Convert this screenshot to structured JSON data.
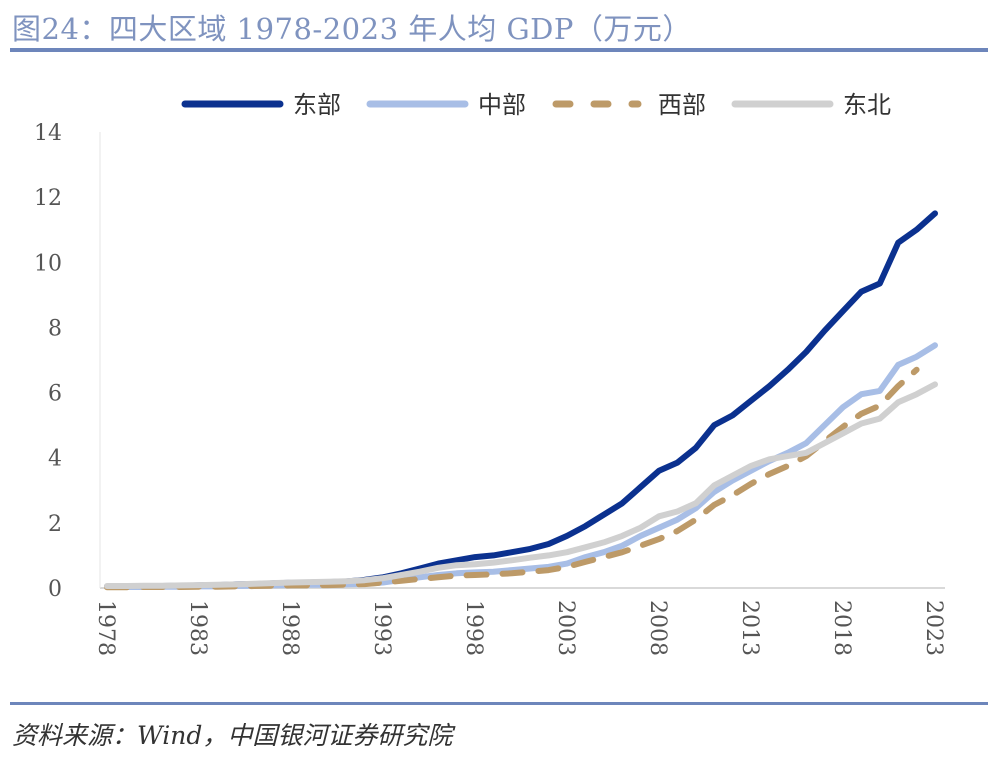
{
  "title": "图24：四大区域 1978-2023 年人均 GDP（万元）",
  "source": "资料来源：Wind，中国银河证券研究院",
  "chart_data": {
    "type": "line",
    "title": "四大区域 1978-2023 年人均 GDP（万元）",
    "xlabel": "",
    "ylabel": "",
    "ylim": [
      0,
      14
    ],
    "yticks": [
      "0",
      "2",
      "4",
      "6",
      "8",
      "10",
      "12",
      "14"
    ],
    "xticks": [
      "1978",
      "1983",
      "1988",
      "1993",
      "1998",
      "2003",
      "2008",
      "2013",
      "2018",
      "2023"
    ],
    "legend_position": "top",
    "x": [
      1978,
      1979,
      1980,
      1981,
      1982,
      1983,
      1984,
      1985,
      1986,
      1987,
      1988,
      1989,
      1990,
      1991,
      1992,
      1993,
      1994,
      1995,
      1996,
      1997,
      1998,
      1999,
      2000,
      2001,
      2002,
      2003,
      2004,
      2005,
      2006,
      2007,
      2008,
      2009,
      2010,
      2011,
      2012,
      2013,
      2014,
      2015,
      2016,
      2017,
      2018,
      2019,
      2020,
      2021,
      2022,
      2023
    ],
    "series": [
      {
        "name": "东部",
        "color": "#0b318f",
        "dash": false,
        "values": [
          0.05,
          0.05,
          0.06,
          0.06,
          0.07,
          0.08,
          0.09,
          0.11,
          0.12,
          0.14,
          0.16,
          0.17,
          0.18,
          0.2,
          0.25,
          0.33,
          0.45,
          0.6,
          0.75,
          0.85,
          0.95,
          1.0,
          1.1,
          1.2,
          1.35,
          1.6,
          1.9,
          2.25,
          2.6,
          3.1,
          3.6,
          3.85,
          4.3,
          5.0,
          5.3,
          5.75,
          6.2,
          6.7,
          7.25,
          7.9,
          8.5,
          9.1,
          9.35,
          10.6,
          11.0,
          11.5
        ]
      },
      {
        "name": "中部",
        "color": "#a8bee6",
        "dash": false,
        "values": [
          0.03,
          0.03,
          0.03,
          0.04,
          0.04,
          0.05,
          0.05,
          0.06,
          0.07,
          0.08,
          0.09,
          0.1,
          0.1,
          0.11,
          0.13,
          0.17,
          0.25,
          0.33,
          0.4,
          0.45,
          0.48,
          0.5,
          0.55,
          0.6,
          0.65,
          0.75,
          0.95,
          1.1,
          1.3,
          1.6,
          1.85,
          2.1,
          2.45,
          2.95,
          3.3,
          3.6,
          3.9,
          4.15,
          4.45,
          5.0,
          5.55,
          5.95,
          6.05,
          6.85,
          7.1,
          7.45
        ]
      },
      {
        "name": "西部",
        "color": "#bd9a68",
        "dash": true,
        "values": [
          0.02,
          0.02,
          0.03,
          0.03,
          0.03,
          0.04,
          0.04,
          0.05,
          0.06,
          0.07,
          0.08,
          0.08,
          0.09,
          0.1,
          0.12,
          0.17,
          0.22,
          0.28,
          0.33,
          0.38,
          0.4,
          0.42,
          0.45,
          0.5,
          0.55,
          0.65,
          0.8,
          0.95,
          1.1,
          1.3,
          1.5,
          1.75,
          2.1,
          2.55,
          2.85,
          3.2,
          3.5,
          3.75,
          4.05,
          4.5,
          4.95,
          5.35,
          5.6,
          6.2,
          6.7,
          null
        ]
      },
      {
        "name": "东北",
        "color": "#d0d0d0",
        "dash": false,
        "values": [
          0.06,
          0.06,
          0.07,
          0.07,
          0.08,
          0.09,
          0.1,
          0.11,
          0.13,
          0.15,
          0.17,
          0.18,
          0.19,
          0.21,
          0.24,
          0.3,
          0.4,
          0.5,
          0.62,
          0.7,
          0.73,
          0.78,
          0.85,
          0.93,
          1.0,
          1.1,
          1.25,
          1.4,
          1.6,
          1.85,
          2.2,
          2.35,
          2.6,
          3.15,
          3.45,
          3.75,
          3.95,
          4.05,
          4.15,
          4.45,
          4.75,
          5.05,
          5.2,
          5.7,
          5.95,
          6.25
        ]
      }
    ]
  }
}
